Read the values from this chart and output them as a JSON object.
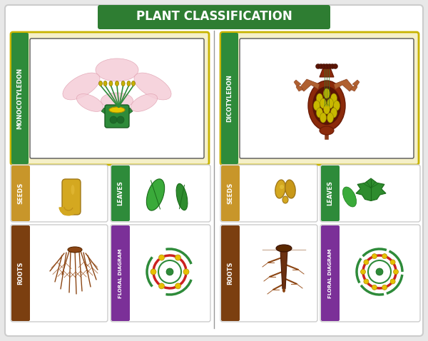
{
  "title": "PLANT CLASSIFICATION",
  "title_bg": "#2e7d32",
  "title_color": "#ffffff",
  "outer_bg": "#e8e8e8",
  "inner_bg": "#ffffff",
  "card_bg": "#f5f0c8",
  "card_edge": "#c8b400",
  "white": "#ffffff",
  "divider_color": "#aaaaaa",
  "green_label": "#2e8b3a",
  "gold_label": "#c8962a",
  "brown_label": "#7b3f10",
  "purple_label": "#7b3098",
  "left_title": "MONOCOTYLEDON",
  "right_title": "DICOTYLEDON",
  "seeds_label": "SEEDS",
  "leaves_label": "LEAVES",
  "roots_label": "ROOTS",
  "floral_label": "FLORAL DIAGRAM"
}
